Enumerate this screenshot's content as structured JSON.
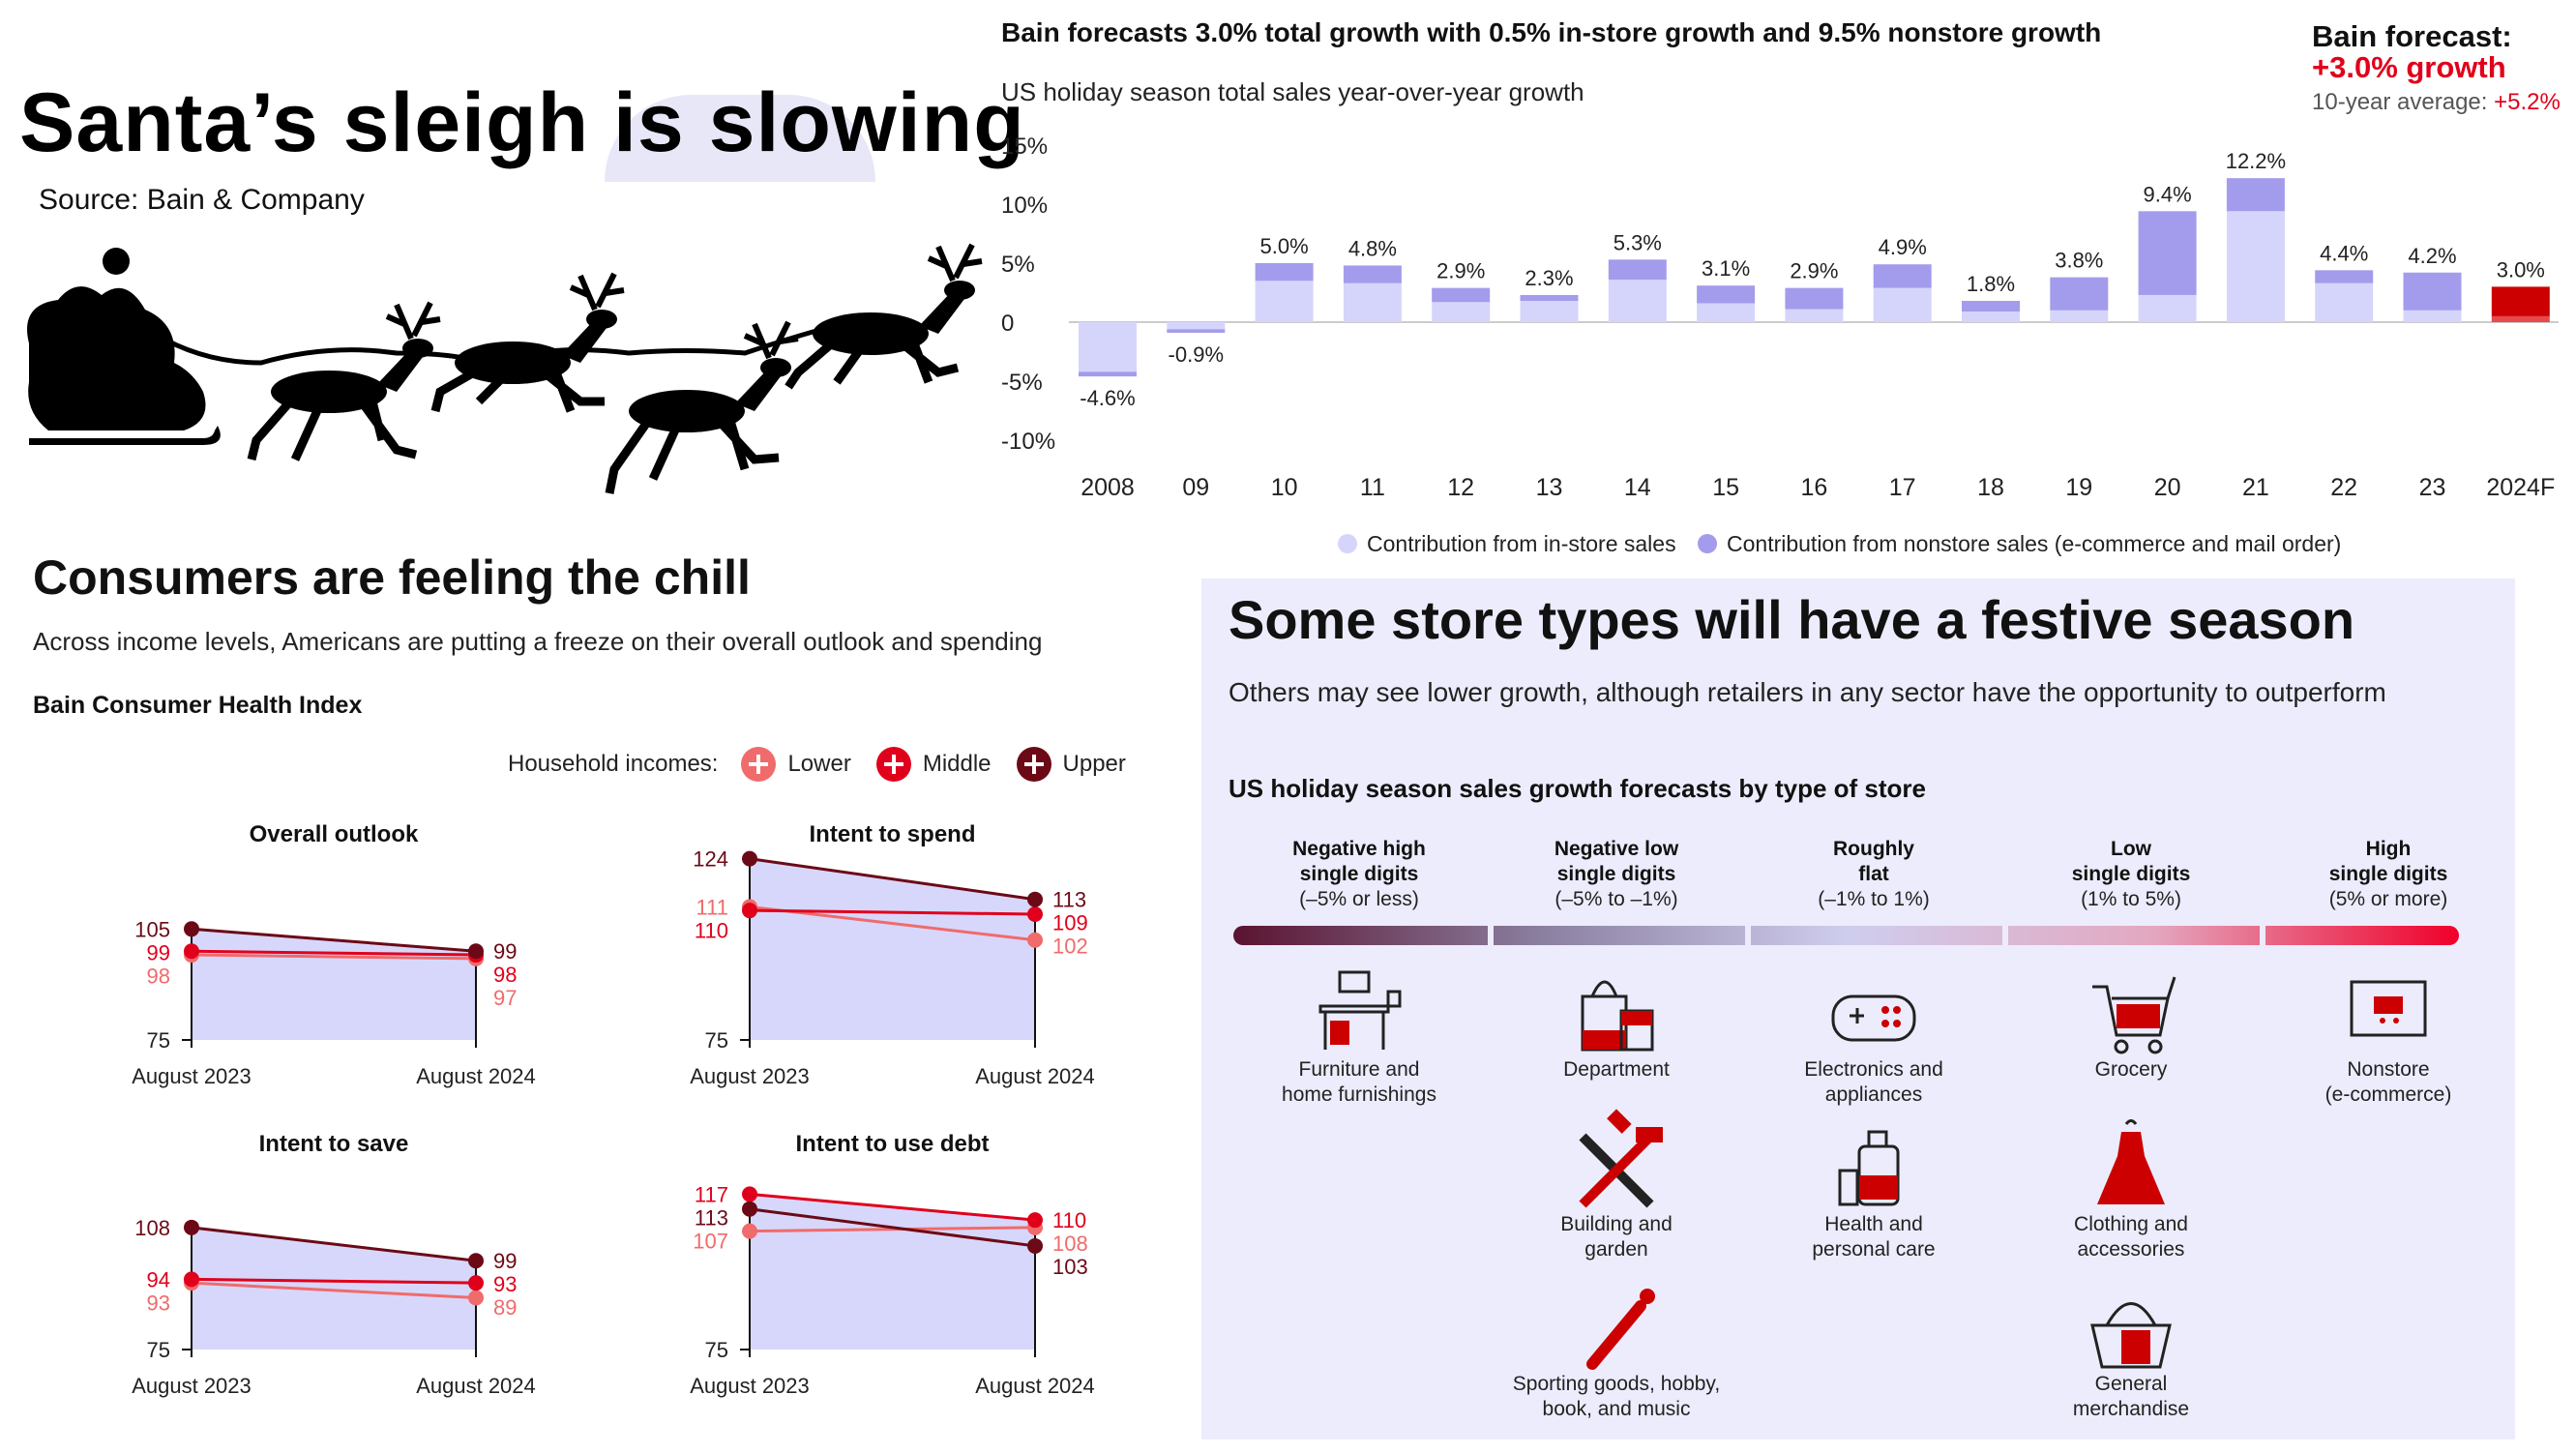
{
  "header": {
    "title": "Santa’s sleigh is slowing",
    "source": "Source: Bain & Company"
  },
  "colors": {
    "instore": "#d5d5fb",
    "nonstore": "#a39cec",
    "forecast": "#cc0000",
    "lower": "#f06b6b",
    "middle": "#e0001b",
    "upper": "#6b0a16",
    "area": "#d7d7fb"
  },
  "top_chart": {
    "title": "Bain forecasts 3.0% total growth with 0.5% in-store growth and 9.5% nonstore growth",
    "subtitle": "US holiday season total sales year-over-year growth",
    "forecast_label": "Bain forecast:",
    "forecast_value": "+3.0% growth",
    "avg_label": "10-year average: ",
    "avg_value": "+5.2%",
    "legend_instore": "Contribution from in-store sales",
    "legend_nonstore": "Contribution from nonstore sales (e-commerce and mail order)"
  },
  "consumers": {
    "title": "Consumers are feeling the chill",
    "subtitle": "Across income levels, Americans are putting a freeze on their overall outlook and spending",
    "index_title": "Bain Consumer Health Index",
    "legend_label": "Household incomes:",
    "legend_lower": "Lower",
    "legend_middle": "Middle",
    "legend_upper": "Upper"
  },
  "stores": {
    "title": "Some store types will have a festive season",
    "subtitle": "Others may see lower growth, although retailers in any sector have the opportunity to outperform",
    "chart_title": "US holiday season sales growth forecasts by type of store",
    "categories": [
      {
        "line1": "Negative high",
        "line2": "single digits",
        "range": "(–5% or less)",
        "color": "#5a1330"
      },
      {
        "line1": "Negative low",
        "line2": "single digits",
        "range": "(–5% to –1%)",
        "color": "#9a8aa8"
      },
      {
        "line1": "Roughly",
        "line2": "flat",
        "range": "(–1% to 1%)",
        "color": "#cfcdee"
      },
      {
        "line1": "Low",
        "line2": "single digits",
        "range": "(1% to 5%)",
        "color": "#e2a4bd"
      },
      {
        "line1": "High",
        "line2": "single digits",
        "range": "(5% or more)",
        "color": "#e8193c"
      }
    ],
    "items": [
      {
        "col": 0,
        "row": 0,
        "label": [
          "Furniture and",
          "home furnishings"
        ],
        "icon": "furniture-icon"
      },
      {
        "col": 1,
        "row": 0,
        "label": [
          "Department"
        ],
        "icon": "shopping-bags-icon"
      },
      {
        "col": 1,
        "row": 1,
        "label": [
          "Building and",
          "garden"
        ],
        "icon": "tools-icon"
      },
      {
        "col": 1,
        "row": 2,
        "label": [
          "Sporting goods, hobby,",
          "book, and music"
        ],
        "icon": "baseball-bat-icon"
      },
      {
        "col": 2,
        "row": 0,
        "label": [
          "Electronics and",
          "appliances"
        ],
        "icon": "game-controller-icon"
      },
      {
        "col": 2,
        "row": 1,
        "label": [
          "Health and",
          "personal care"
        ],
        "icon": "lotion-bottle-icon"
      },
      {
        "col": 3,
        "row": 0,
        "label": [
          "Grocery"
        ],
        "icon": "shopping-cart-icon"
      },
      {
        "col": 3,
        "row": 1,
        "label": [
          "Clothing and",
          "accessories"
        ],
        "icon": "dress-icon"
      },
      {
        "col": 3,
        "row": 2,
        "label": [
          "General",
          "merchandise"
        ],
        "icon": "shopping-basket-icon"
      },
      {
        "col": 4,
        "row": 0,
        "label": [
          "Nonstore",
          "(e-commerce)"
        ],
        "icon": "computer-cart-icon"
      }
    ]
  },
  "chart_data": [
    {
      "type": "bar",
      "title": "Bain forecasts 3.0% total growth with 0.5% in-store growth and 9.5% nonstore growth",
      "subtitle": "US holiday season total sales year-over-year growth",
      "categories": [
        "2008",
        "09",
        "10",
        "11",
        "12",
        "13",
        "14",
        "15",
        "16",
        "17",
        "18",
        "19",
        "20",
        "21",
        "22",
        "23",
        "2024F"
      ],
      "yticks": [
        "15%",
        "10%",
        "5%",
        "0",
        "-5%",
        "-10%"
      ],
      "ylim": [
        -10,
        15
      ],
      "total_labels": [
        "-4.6%",
        "-0.9%",
        "5.0%",
        "4.8%",
        "2.9%",
        "2.3%",
        "5.3%",
        "3.1%",
        "2.9%",
        "4.9%",
        "1.8%",
        "3.8%",
        "9.4%",
        "12.2%",
        "4.4%",
        "4.2%",
        "3.0%"
      ],
      "series": [
        {
          "name": "Contribution from in-store sales",
          "values": [
            -4.2,
            -0.6,
            3.5,
            3.3,
            1.7,
            1.8,
            3.6,
            1.6,
            1.1,
            2.9,
            0.9,
            1.0,
            2.3,
            9.4,
            3.3,
            1.0,
            0.5
          ]
        },
        {
          "name": "Contribution from nonstore sales (e-commerce and mail order)",
          "values": [
            -0.4,
            -0.3,
            1.5,
            1.5,
            1.2,
            0.5,
            1.7,
            1.5,
            1.8,
            2.0,
            0.9,
            2.8,
            7.1,
            2.8,
            1.1,
            3.2,
            2.5
          ]
        }
      ],
      "grid": false
    },
    {
      "type": "line",
      "title": "Overall outlook",
      "categories": [
        "August 2023",
        "August 2024"
      ],
      "y_axis_label": "75",
      "ymin": 75,
      "series": [
        {
          "name": "Lower",
          "values": [
            98,
            97
          ],
          "labels": [
            "98",
            "97"
          ]
        },
        {
          "name": "Middle",
          "values": [
            99,
            98
          ],
          "labels": [
            "99",
            "98"
          ]
        },
        {
          "name": "Upper",
          "values": [
            105,
            99
          ],
          "labels": [
            "105",
            "99"
          ]
        }
      ]
    },
    {
      "type": "line",
      "title": "Intent to spend",
      "categories": [
        "August 2023",
        "August 2024"
      ],
      "y_axis_label": "75",
      "ymin": 75,
      "series": [
        {
          "name": "Lower",
          "values": [
            111,
            102
          ],
          "labels": [
            "111",
            "102"
          ]
        },
        {
          "name": "Middle",
          "values": [
            110,
            109
          ],
          "labels": [
            "110",
            "109"
          ]
        },
        {
          "name": "Upper",
          "values": [
            124,
            113
          ],
          "labels": [
            "124",
            "113"
          ]
        }
      ]
    },
    {
      "type": "line",
      "title": "Intent to save",
      "categories": [
        "August 2023",
        "August 2024"
      ],
      "y_axis_label": "75",
      "ymin": 75,
      "series": [
        {
          "name": "Lower",
          "values": [
            93,
            89
          ],
          "labels": [
            "93",
            "89"
          ]
        },
        {
          "name": "Middle",
          "values": [
            94,
            93
          ],
          "labels": [
            "94",
            "93"
          ]
        },
        {
          "name": "Upper",
          "values": [
            108,
            99
          ],
          "labels": [
            "108",
            "99"
          ]
        }
      ]
    },
    {
      "type": "line",
      "title": "Intent to use debt",
      "categories": [
        "August 2023",
        "August 2024"
      ],
      "y_axis_label": "75",
      "ymin": 75,
      "series": [
        {
          "name": "Lower",
          "values": [
            107,
            108
          ],
          "labels": [
            "107",
            "108"
          ]
        },
        {
          "name": "Middle",
          "values": [
            117,
            110
          ],
          "labels": [
            "117",
            "110"
          ]
        },
        {
          "name": "Upper",
          "values": [
            113,
            103
          ],
          "labels": [
            "113",
            "103"
          ]
        }
      ]
    }
  ]
}
